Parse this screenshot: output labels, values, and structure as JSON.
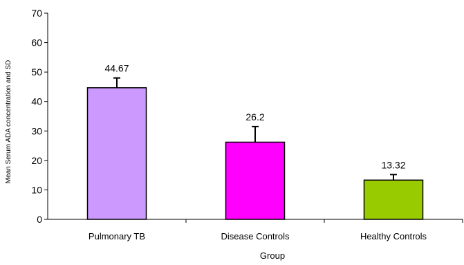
{
  "chart_data": {
    "type": "bar",
    "categories": [
      "Pulmonary TB",
      "Disease Controls",
      "Healthy Controls"
    ],
    "values": [
      44.67,
      26.2,
      13.32
    ],
    "value_labels": [
      "44.67",
      "26.2",
      "13.32"
    ],
    "error_upper": [
      48.0,
      31.5,
      15.2
    ],
    "xlabel": "Group",
    "ylabel": "Mean Serum ADA concentration and SD",
    "ylim": [
      0,
      70
    ],
    "yticks": [
      0,
      10,
      20,
      30,
      40,
      50,
      60,
      70
    ],
    "grid": false,
    "legend": "none",
    "colors": [
      "#cc99ff",
      "#ff00ff",
      "#99cc00"
    ],
    "bar_outline": "#000000"
  }
}
